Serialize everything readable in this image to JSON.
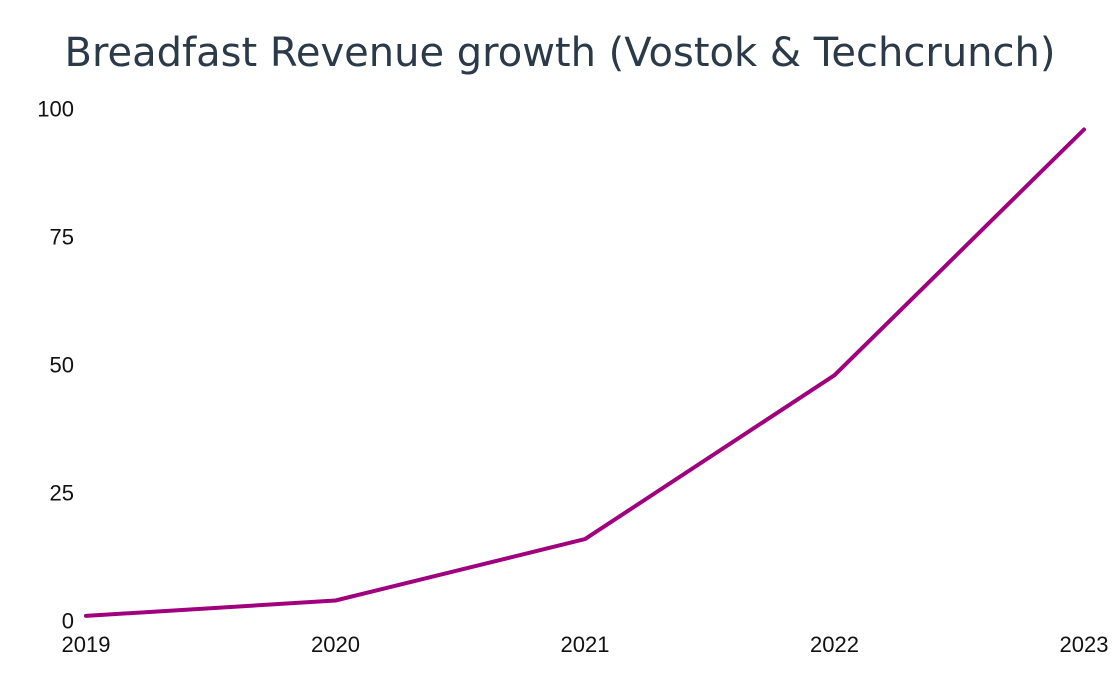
{
  "chart_data": {
    "type": "line",
    "title": "Breadfast Revenue growth (Vostok & Techcrunch)",
    "xlabel": "",
    "ylabel": "",
    "x": [
      "2019",
      "2020",
      "2021",
      "2022",
      "2023"
    ],
    "series": [
      {
        "values": [
          1,
          4,
          16,
          48,
          96
        ],
        "color": "#a0007e"
      }
    ],
    "xlim": [
      "2019",
      "2023"
    ],
    "ylim": [
      0,
      100
    ],
    "y_ticks": [
      "0",
      "25",
      "50",
      "75",
      "100"
    ],
    "x_ticks": [
      "2019",
      "2020",
      "2021",
      "2022",
      "2023"
    ],
    "grid": false,
    "legend": "none"
  }
}
